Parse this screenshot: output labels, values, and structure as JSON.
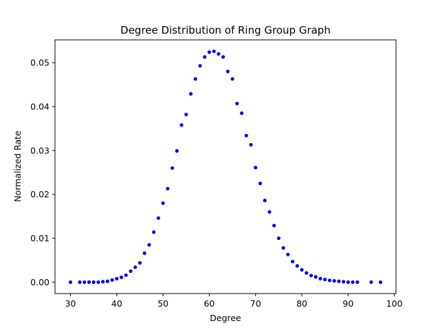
{
  "chart_data": {
    "type": "scatter",
    "title": "Degree Distribution of Ring Group Graph",
    "xlabel": "Degree",
    "ylabel": "Normalized Rate",
    "xlim": [
      26.65,
      100.35
    ],
    "ylim": [
      -0.0026,
      0.0552
    ],
    "xticks": [
      30,
      40,
      50,
      60,
      70,
      80,
      90,
      100
    ],
    "yticks": [
      0.0,
      0.01,
      0.02,
      0.03,
      0.04,
      0.05
    ],
    "xtick_labels": [
      "30",
      "40",
      "50",
      "60",
      "70",
      "80",
      "90",
      "100"
    ],
    "ytick_labels": [
      "0.00",
      "0.01",
      "0.02",
      "0.03",
      "0.04",
      "0.05"
    ],
    "grid": false,
    "legend": "none",
    "marker_color": "#0000ff",
    "series": [
      {
        "x": [
          30,
          32,
          33,
          34,
          35,
          36,
          37,
          38,
          39,
          40,
          41,
          42,
          43,
          44,
          45,
          46,
          47,
          48,
          49,
          50,
          51,
          52,
          53,
          54,
          55,
          56,
          57,
          58,
          59,
          60,
          61,
          62,
          63,
          64,
          65,
          66,
          67,
          68,
          69,
          70,
          71,
          72,
          73,
          74,
          75,
          76,
          77,
          78,
          79,
          80,
          81,
          82,
          83,
          84,
          85,
          86,
          87,
          88,
          89,
          90,
          91,
          92,
          95,
          97
        ],
        "y": [
          0.0,
          0.0,
          0.0,
          0.0,
          0.0,
          0.0,
          0.0001,
          0.0002,
          0.0005,
          0.0008,
          0.0011,
          0.0016,
          0.0025,
          0.0034,
          0.0044,
          0.0066,
          0.0085,
          0.0114,
          0.0146,
          0.018,
          0.0213,
          0.026,
          0.0299,
          0.0358,
          0.0382,
          0.0429,
          0.0463,
          0.0493,
          0.0513,
          0.0524,
          0.0526,
          0.052,
          0.0513,
          0.048,
          0.0463,
          0.0407,
          0.0385,
          0.0334,
          0.0313,
          0.0261,
          0.0225,
          0.0186,
          0.016,
          0.0129,
          0.01,
          0.0078,
          0.0063,
          0.0047,
          0.0037,
          0.0028,
          0.0021,
          0.0015,
          0.0012,
          0.0008,
          0.0006,
          0.0004,
          0.0003,
          0.0002,
          0.0001,
          0.0,
          0.0,
          0.0,
          0.0,
          0.0
        ]
      }
    ]
  }
}
